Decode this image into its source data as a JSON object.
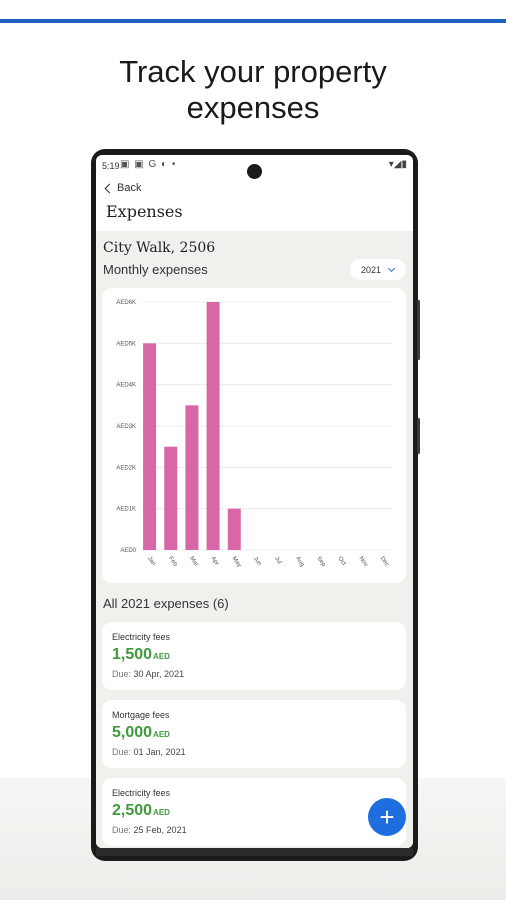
{
  "headline": [
    "Track your property",
    "expenses"
  ],
  "status": {
    "time": "5:19",
    "notifications": "▣ ▣ G ◐ •",
    "system": "▾◢▮"
  },
  "nav": {
    "back_label": "Back",
    "title": "Expenses"
  },
  "property": {
    "name": "City Walk, 2506"
  },
  "monthly_label": "Monthly expenses",
  "year_select": {
    "value": "2021"
  },
  "chart_data": {
    "type": "bar",
    "categories": [
      "Jan",
      "Feb",
      "Mar",
      "Apr",
      "May",
      "Jun",
      "Jul",
      "Aug",
      "Sep",
      "Oct",
      "Nov",
      "Dec"
    ],
    "values": [
      5000,
      2500,
      3500,
      6000,
      1000,
      0,
      0,
      0,
      0,
      0,
      0,
      0
    ],
    "y_ticks": [
      "AED0",
      "AED1K",
      "AED2K",
      "AED3K",
      "AED4K",
      "AED5K",
      "AED6K"
    ],
    "ylim": [
      0,
      6000
    ],
    "bar_color": "#d966a6",
    "grid": true
  },
  "all_label": "All 2021 expenses (6)",
  "expenses": [
    {
      "title": "Electricity fees",
      "amount": "1,500",
      "currency": "AED",
      "due_label": "Due:",
      "due_date": "30 Apr, 2021"
    },
    {
      "title": "Mortgage fees",
      "amount": "5,000",
      "currency": "AED",
      "due_label": "Due:",
      "due_date": "01 Jan, 2021"
    },
    {
      "title": "Electricity fees",
      "amount": "2,500",
      "currency": "AED",
      "due_label": "Due:",
      "due_date": "25 Feb, 2021"
    }
  ],
  "fab": {
    "icon": "plus-icon",
    "glyph": "+"
  },
  "colors": {
    "accent": "#1f6ee0",
    "amount": "#3f9a3b",
    "top_rule": "#1f5fbf"
  }
}
